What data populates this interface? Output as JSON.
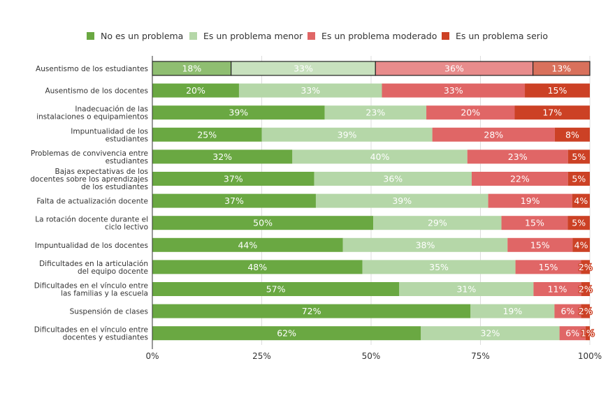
{
  "chart_data": {
    "type": "bar",
    "orientation": "horizontal",
    "stacked": true,
    "normalized": true,
    "title": "",
    "xlabel": "",
    "ylabel": "",
    "xlim": [
      0,
      100
    ],
    "x_ticks": [
      "0%",
      "25%",
      "50%",
      "75%",
      "100%"
    ],
    "x_tick_values": [
      0,
      25,
      50,
      75,
      100
    ],
    "grid": true,
    "legend_position": "top-center",
    "highlighted_category_index": 0,
    "categories": [
      [
        "Ausentismo de los estudiantes"
      ],
      [
        "Ausentismo de los docentes"
      ],
      [
        "Inadecuación de las",
        "instalaciones o equipamientos"
      ],
      [
        "Impuntualidad de los",
        "estudiantes"
      ],
      [
        "Problemas de convivencia entre",
        "estudiantes"
      ],
      [
        "Bajas expectativas de los",
        "docentes sobre los aprendizajes",
        "de los estudiantes"
      ],
      [
        "Falta de actualización docente"
      ],
      [
        "La rotación docente durante el",
        "ciclo lectivo"
      ],
      [
        "Impuntualidad de los docentes"
      ],
      [
        "Dificultades en la articulación",
        "del equipo docente"
      ],
      [
        "Dificultades en el vínculo entre",
        "las familias y la escuela"
      ],
      [
        "Suspensión de clases"
      ],
      [
        "Dificultades en el vínculo entre",
        "docentes y estudiantes"
      ]
    ],
    "series": [
      {
        "name": "No es un problema",
        "color": "#6aa842",
        "values": [
          18,
          20,
          39,
          25,
          32,
          37,
          37,
          50,
          44,
          48,
          57,
          72,
          62
        ]
      },
      {
        "name": "Es un problema menor",
        "color": "#b5d7a8",
        "values": [
          33,
          33,
          23,
          39,
          40,
          36,
          39,
          29,
          38,
          35,
          31,
          19,
          32
        ]
      },
      {
        "name": "Es un problema moderado",
        "color": "#e06666",
        "values": [
          36,
          33,
          20,
          28,
          23,
          22,
          19,
          15,
          15,
          15,
          11,
          6,
          6
        ]
      },
      {
        "name": "Es un problema serio",
        "color": "#cc4125",
        "values": [
          13,
          15,
          17,
          8,
          5,
          5,
          4,
          5,
          4,
          2,
          2,
          2,
          1
        ]
      }
    ],
    "value_suffix": "%"
  }
}
